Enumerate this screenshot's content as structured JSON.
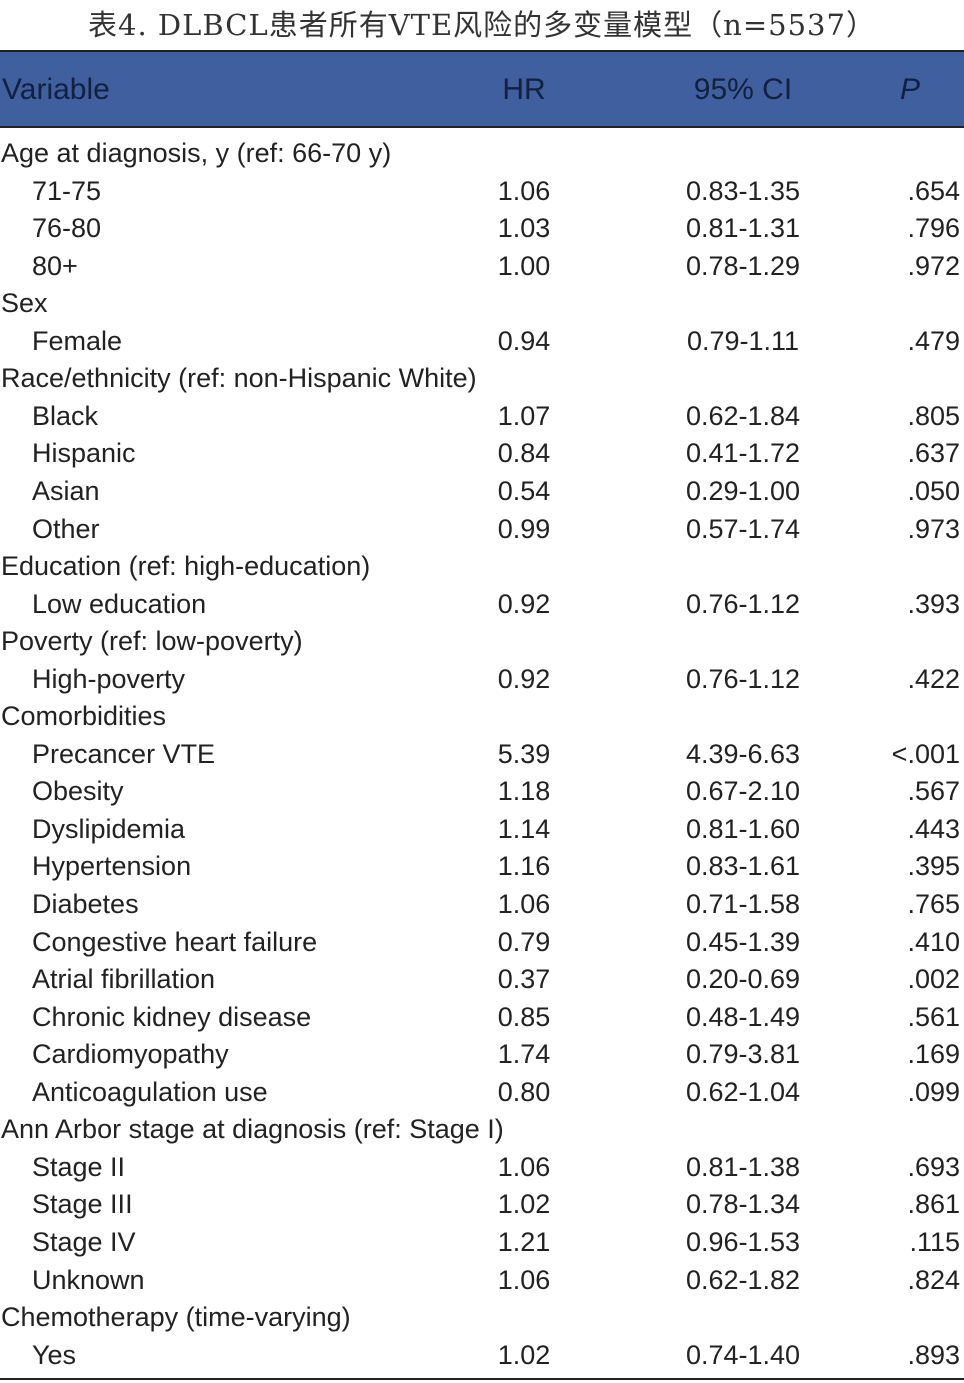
{
  "title": "表4. DLBCL患者所有VTE风险的多变量模型（n=5537）",
  "header": {
    "variable": "Variable",
    "hr": "HR",
    "ci": "95% CI",
    "p": "P"
  },
  "rows": [
    {
      "label": "Age at diagnosis, y (ref: 66-70 y)"
    },
    {
      "label": "71-75",
      "hr": "1.06",
      "ci": "0.83-1.35",
      "p": ".654"
    },
    {
      "label": "76-80",
      "hr": "1.03",
      "ci": "0.81-1.31",
      "p": ".796"
    },
    {
      "label": "80+",
      "hr": "1.00",
      "ci": "0.78-1.29",
      "p": ".972"
    },
    {
      "label": "Sex"
    },
    {
      "label": "Female",
      "hr": "0.94",
      "ci": "0.79-1.11",
      "p": ".479"
    },
    {
      "label": "Race/ethnicity (ref: non-Hispanic White)"
    },
    {
      "label": "Black",
      "hr": "1.07",
      "ci": "0.62-1.84",
      "p": ".805"
    },
    {
      "label": "Hispanic",
      "hr": "0.84",
      "ci": "0.41-1.72",
      "p": ".637"
    },
    {
      "label": "Asian",
      "hr": "0.54",
      "ci": "0.29-1.00",
      "p": ".050"
    },
    {
      "label": "Other",
      "hr": "0.99",
      "ci": "0.57-1.74",
      "p": ".973"
    },
    {
      "label": "Education (ref: high-education)"
    },
    {
      "label": "Low education",
      "hr": "0.92",
      "ci": "0.76-1.12",
      "p": ".393"
    },
    {
      "label": "Poverty (ref: low-poverty)"
    },
    {
      "label": "High-poverty",
      "hr": "0.92",
      "ci": "0.76-1.12",
      "p": ".422"
    },
    {
      "label": "Comorbidities"
    },
    {
      "label": "Precancer VTE",
      "hr": "5.39",
      "ci": "4.39-6.63",
      "p": "<.001"
    },
    {
      "label": "Obesity",
      "hr": "1.18",
      "ci": "0.67-2.10",
      "p": ".567"
    },
    {
      "label": "Dyslipidemia",
      "hr": "1.14",
      "ci": "0.81-1.60",
      "p": ".443"
    },
    {
      "label": "Hypertension",
      "hr": "1.16",
      "ci": "0.83-1.61",
      "p": ".395"
    },
    {
      "label": "Diabetes",
      "hr": "1.06",
      "ci": "0.71-1.58",
      "p": ".765"
    },
    {
      "label": "Congestive heart failure",
      "hr": "0.79",
      "ci": "0.45-1.39",
      "p": ".410"
    },
    {
      "label": "Atrial fibrillation",
      "hr": "0.37",
      "ci": "0.20-0.69",
      "p": ".002"
    },
    {
      "label": "Chronic kidney disease",
      "hr": "0.85",
      "ci": "0.48-1.49",
      "p": ".561"
    },
    {
      "label": "Cardiomyopathy",
      "hr": "1.74",
      "ci": "0.79-3.81",
      "p": ".169"
    },
    {
      "label": "Anticoagulation use",
      "hr": "0.80",
      "ci": "0.62-1.04",
      "p": ".099"
    },
    {
      "label": "Ann Arbor stage at diagnosis (ref: Stage I)"
    },
    {
      "label": "Stage II",
      "hr": "1.06",
      "ci": "0.81-1.38",
      "p": ".693"
    },
    {
      "label": "Stage III",
      "hr": "1.02",
      "ci": "0.78-1.34",
      "p": ".861"
    },
    {
      "label": "Stage IV",
      "hr": "1.21",
      "ci": "0.96-1.53",
      "p": ".115"
    },
    {
      "label": "Unknown",
      "hr": "1.06",
      "ci": "0.62-1.82",
      "p": ".824"
    },
    {
      "label": "Chemotherapy (time-varying)"
    },
    {
      "label": "Yes",
      "hr": "1.02",
      "ci": "0.74-1.40",
      "p": ".893"
    }
  ]
}
